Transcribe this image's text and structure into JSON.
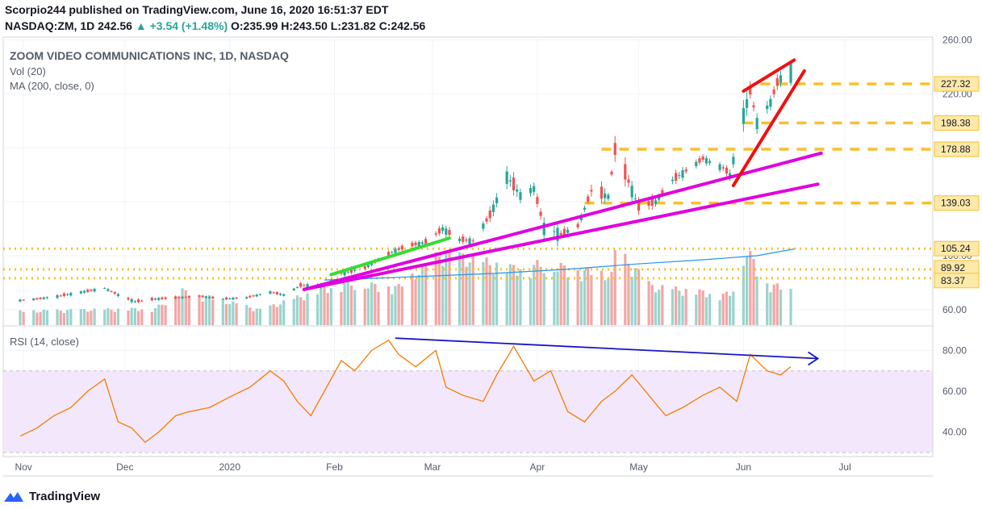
{
  "header": {
    "publisher": "Scorpio244 published on TradingView.com, June 16, 2020 16:51:37 EDT",
    "symbol": "NASDAQ:ZM, 1D",
    "last": "242.56",
    "arrow": "▲",
    "change": "+3.54 (+1.48%)",
    "ohlc_o": "O:235.99",
    "ohlc_h": "H:243.50",
    "ohlc_l": "L:231.82",
    "ohlc_c": "C:242.56"
  },
  "legend": {
    "title": "ZOOM VIDEO COMMUNICATIONS INC, 1D, NASDAQ",
    "vol": "Vol (20)",
    "ma": "MA (200, close, 0)",
    "rsi": "RSI (14, close)"
  },
  "footer": {
    "brand": "TradingView",
    "logo_icon": "tradingview-logo-icon"
  },
  "colors": {
    "up": "#26a69a",
    "down": "#ef5350",
    "rsi": "#f57c00",
    "ma": "#2196f3",
    "level": "#f9c02d",
    "support": "#e000e0",
    "wedge": "#ee1111",
    "trend_green": "#33dd33",
    "divergence": "#1515c8"
  },
  "chart_data": [
    {
      "type": "candlestick",
      "title": "ZOOM VIDEO COMMUNICATIONS INC, 1D, NASDAQ",
      "x_ticks": [
        "Nov",
        "Dec",
        "2020",
        "Feb",
        "Mar",
        "Apr",
        "May",
        "Jun",
        "Jul"
      ],
      "x_tick_dates": [
        "2019-11-01",
        "2019-12-01",
        "2020-01-01",
        "2020-02-01",
        "2020-03-01",
        "2020-04-01",
        "2020-05-01",
        "2020-06-01",
        "2020-07-01"
      ],
      "y_ticks": [
        60,
        100,
        140,
        180,
        220,
        260
      ],
      "y_tick_labels": [
        "60.00",
        "100.00",
        "140.00",
        "180.00",
        "220.00",
        "260.00"
      ],
      "ylim": [
        48,
        262
      ],
      "price_labels": [
        "227.32",
        "198.38",
        "178.88",
        "139.03",
        "105.24",
        "89.92",
        "83.37"
      ],
      "levels": [
        227.32,
        198.38,
        178.88,
        139.03,
        105.24,
        89.92,
        83.37
      ],
      "ma_200": [
        [
          "2020-01-29",
          82
        ],
        [
          "2020-02-15",
          83.5
        ],
        [
          "2020-03-01",
          85
        ],
        [
          "2020-03-20",
          87
        ],
        [
          "2020-04-10",
          90
        ],
        [
          "2020-05-01",
          94
        ],
        [
          "2020-05-20",
          97
        ],
        [
          "2020-06-05",
          100
        ],
        [
          "2020-06-16",
          105
        ]
      ],
      "trendlines": [
        {
          "color": "green",
          "points": [
            [
              "2020-01-31",
              86
            ],
            [
              "2020-03-06",
              113
            ]
          ]
        },
        {
          "color": "magenta",
          "points": [
            [
              "2020-01-23",
              75
            ],
            [
              "2020-06-24",
              176
            ]
          ]
        },
        {
          "color": "magenta",
          "points": [
            [
              "2020-01-23",
              75
            ],
            [
              "2020-06-23",
              153
            ]
          ]
        },
        {
          "color": "red",
          "points": [
            [
              "2020-05-29",
              152
            ],
            [
              "2020-06-19",
              237
            ]
          ]
        },
        {
          "color": "red",
          "points": [
            [
              "2020-06-01",
              222
            ],
            [
              "2020-06-16",
              245
            ]
          ]
        }
      ],
      "price": [
        [
          "2019-10-31",
          64,
          68,
          63,
          67
        ],
        [
          "2019-11-05",
          67,
          71,
          66,
          68
        ],
        [
          "2019-11-11",
          68,
          72,
          65,
          70
        ],
        [
          "2019-11-18",
          70,
          74,
          67,
          73
        ],
        [
          "2019-11-25",
          73,
          77,
          72,
          76
        ],
        [
          "2019-11-29",
          76,
          78,
          70,
          71
        ],
        [
          "2019-12-04",
          71,
          72,
          65,
          66
        ],
        [
          "2019-12-10",
          66,
          69,
          63,
          68
        ],
        [
          "2019-12-17",
          68,
          70,
          66,
          69
        ],
        [
          "2019-12-23",
          69,
          71,
          66,
          70
        ],
        [
          "2019-12-30",
          70,
          72,
          67,
          68
        ],
        [
          "2020-01-06",
          68,
          70,
          65,
          69
        ],
        [
          "2020-01-13",
          69,
          74,
          68,
          73
        ],
        [
          "2020-01-17",
          73,
          75,
          70,
          71
        ],
        [
          "2020-01-22",
          71,
          79,
          70,
          78
        ],
        [
          "2020-01-29",
          75,
          79,
          74,
          78
        ],
        [
          "2020-02-03",
          78,
          88,
          76,
          87
        ],
        [
          "2020-02-10",
          87,
          93,
          85,
          91
        ],
        [
          "2020-02-14",
          91,
          98,
          89,
          97
        ],
        [
          "2020-02-19",
          97,
          106,
          95,
          104
        ],
        [
          "2020-02-24",
          104,
          112,
          100,
          108
        ],
        [
          "2020-02-28",
          108,
          112,
          98,
          110
        ],
        [
          "2020-03-04",
          110,
          126,
          107,
          120
        ],
        [
          "2020-03-09",
          120,
          123,
          108,
          112
        ],
        [
          "2020-03-13",
          112,
          118,
          103,
          111
        ],
        [
          "2020-03-18",
          111,
          134,
          108,
          130
        ],
        [
          "2020-03-23",
          130,
          162,
          129,
          159
        ],
        [
          "2020-03-27",
          159,
          161,
          140,
          145
        ],
        [
          "2020-03-31",
          145,
          160,
          138,
          150
        ],
        [
          "2020-04-03",
          150,
          152,
          118,
          121
        ],
        [
          "2020-04-08",
          121,
          126,
          110,
          116
        ],
        [
          "2020-04-13",
          116,
          128,
          114,
          122
        ],
        [
          "2020-04-17",
          122,
          152,
          120,
          148
        ],
        [
          "2020-04-22",
          148,
          152,
          140,
          144
        ],
        [
          "2020-04-24",
          144,
          186,
          143,
          178
        ],
        [
          "2020-04-28",
          178,
          180,
          150,
          155
        ],
        [
          "2020-05-01",
          155,
          157,
          132,
          136
        ],
        [
          "2020-05-06",
          136,
          145,
          130,
          140
        ],
        [
          "2020-05-11",
          140,
          158,
          138,
          156
        ],
        [
          "2020-05-15",
          156,
          165,
          150,
          163
        ],
        [
          "2020-05-20",
          163,
          175,
          160,
          172
        ],
        [
          "2020-05-26",
          172,
          178,
          162,
          165
        ],
        [
          "2020-05-28",
          165,
          168,
          145,
          160
        ],
        [
          "2020-06-01",
          160,
          207,
          158,
          205
        ],
        [
          "2020-06-03",
          205,
          225,
          200,
          222
        ],
        [
          "2020-06-05",
          222,
          225,
          196,
          199
        ],
        [
          "2020-06-09",
          199,
          218,
          196,
          214
        ],
        [
          "2020-06-11",
          214,
          232,
          206,
          228
        ],
        [
          "2020-06-15",
          228,
          243,
          226,
          242.56
        ]
      ],
      "volume_shape": [
        [
          "2019-10-31",
          0.18
        ],
        [
          "2019-11-20",
          0.2
        ],
        [
          "2019-12-10",
          0.22
        ],
        [
          "2019-12-18",
          0.45
        ],
        [
          "2020-01-10",
          0.2
        ],
        [
          "2020-02-03",
          0.55
        ],
        [
          "2020-02-20",
          0.5
        ],
        [
          "2020-03-04",
          0.95
        ],
        [
          "2020-03-24",
          0.75
        ],
        [
          "2020-04-03",
          0.8
        ],
        [
          "2020-04-23",
          0.65
        ],
        [
          "2020-04-24",
          1.0
        ],
        [
          "2020-05-05",
          0.5
        ],
        [
          "2020-05-28",
          0.4
        ],
        [
          "2020-06-02",
          0.98
        ],
        [
          "2020-06-08",
          0.55
        ],
        [
          "2020-06-15",
          0.45
        ]
      ]
    },
    {
      "type": "line",
      "title": "RSI (14, close)",
      "y_ticks": [
        40,
        60,
        80
      ],
      "y_tick_labels": [
        "40.00",
        "60.00",
        "80.00"
      ],
      "ylim": [
        28,
        92
      ],
      "band": [
        30,
        70
      ],
      "divergence_line": [
        [
          "2020-02-19",
          86
        ],
        [
          "2020-06-23",
          76
        ]
      ],
      "x": [
        "2019-10-31",
        "2019-11-05",
        "2019-11-10",
        "2019-11-15",
        "2019-11-20",
        "2019-11-25",
        "2019-11-29",
        "2019-12-03",
        "2019-12-07",
        "2019-12-11",
        "2019-12-16",
        "2019-12-20",
        "2019-12-26",
        "2020-01-02",
        "2020-01-07",
        "2020-01-13",
        "2020-01-17",
        "2020-01-21",
        "2020-01-25",
        "2020-01-29",
        "2020-02-03",
        "2020-02-07",
        "2020-02-12",
        "2020-02-17",
        "2020-02-20",
        "2020-02-25",
        "2020-03-02",
        "2020-03-05",
        "2020-03-10",
        "2020-03-16",
        "2020-03-20",
        "2020-03-25",
        "2020-03-31",
        "2020-04-05",
        "2020-04-10",
        "2020-04-15",
        "2020-04-20",
        "2020-04-24",
        "2020-04-29",
        "2020-05-04",
        "2020-05-09",
        "2020-05-14",
        "2020-05-20",
        "2020-05-25",
        "2020-05-30",
        "2020-06-03",
        "2020-06-08",
        "2020-06-12",
        "2020-06-15"
      ],
      "y": [
        38,
        42,
        48,
        52,
        60,
        66,
        45,
        42,
        35,
        40,
        48,
        50,
        52,
        58,
        62,
        70,
        65,
        55,
        48,
        60,
        75,
        70,
        80,
        85,
        78,
        72,
        80,
        62,
        58,
        55,
        68,
        82,
        65,
        70,
        50,
        45,
        55,
        60,
        68,
        58,
        48,
        52,
        58,
        62,
        55,
        78,
        70,
        68,
        72
      ]
    }
  ]
}
